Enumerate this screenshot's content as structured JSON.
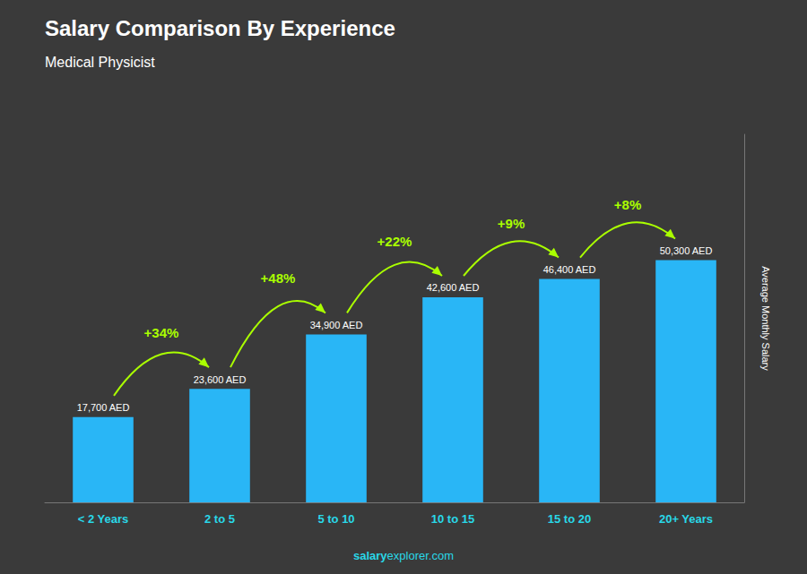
{
  "chart_data": {
    "type": "bar",
    "title": "Salary Comparison By Experience",
    "subtitle": "Medical Physicist",
    "ylabel": "Average Monthly Salary",
    "categories": [
      "< 2 Years",
      "2 to 5",
      "5 to 10",
      "10 to 15",
      "15 to 20",
      "20+ Years"
    ],
    "values": [
      17700,
      23600,
      34900,
      42600,
      46400,
      50300
    ],
    "value_labels": [
      "17,700 AED",
      "23,600 AED",
      "34,900 AED",
      "42,600 AED",
      "46,400 AED",
      "50,300 AED"
    ],
    "data_labels": true,
    "color": "#29b6f6",
    "ylim": [
      0,
      76456
    ],
    "tick_labels": "x",
    "grid": false,
    "annotations": [
      {
        "text": "+34%",
        "color": "#aaff00"
      },
      {
        "text": "+48%",
        "color": "#aaff00"
      },
      {
        "text": "+22%",
        "color": "#aaff00"
      },
      {
        "text": "+9%",
        "color": "#aaff00"
      },
      {
        "text": "+8%",
        "color": "#aaff00"
      }
    ],
    "footer": [
      "salary",
      "explorer.com"
    ]
  }
}
